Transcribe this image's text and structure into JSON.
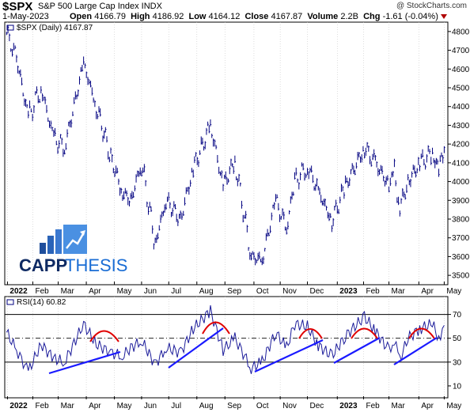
{
  "header": {
    "ticker": "$SPX",
    "name": "S&P 500 Large Cap Index  INDX",
    "watermark": "@ StockCharts.com",
    "date": "1-May-2023",
    "open_label": "Open",
    "open": "4166.79",
    "high_label": "High",
    "high": "4186.92",
    "low_label": "Low",
    "low": "4164.12",
    "close_label": "Close",
    "close": "4167.87",
    "volume_label": "Volume",
    "volume": "2.2B",
    "chg_label": "Chg",
    "chg": "-1.61 (-0.04%)"
  },
  "logo": {
    "text_a": "CAPP",
    "text_b": "THESIS"
  },
  "colors": {
    "price": "#000080",
    "rsi": "#1c1c9a",
    "trend": "#1a1aff",
    "arc": "#e00000",
    "grid": "#c8c8c8",
    "axisline": "#000000"
  },
  "chart_data": [
    {
      "type": "line",
      "title": "$SPX (Daily) 4167.87",
      "x_labels": [
        "2022",
        "Feb",
        "Mar",
        "Apr",
        "May",
        "Jun",
        "Jul",
        "Aug",
        "Sep",
        "Oct",
        "Nov",
        "Dec",
        "2023",
        "Feb",
        "Mar",
        "Apr",
        "May"
      ],
      "ylim": [
        3450,
        4850
      ],
      "y_ticks": [
        3500,
        3600,
        3700,
        3800,
        3900,
        4000,
        4100,
        4200,
        4300,
        4400,
        4500,
        4600,
        4700,
        4800
      ],
      "x": [
        "2022-01-03",
        "2022-01-14",
        "2022-01-27",
        "2022-02-10",
        "2022-02-24",
        "2022-03-08",
        "2022-03-29",
        "2022-04-12",
        "2022-04-28",
        "2022-05-11",
        "2022-05-20",
        "2022-06-01",
        "2022-06-16",
        "2022-06-28",
        "2022-07-14",
        "2022-07-28",
        "2022-08-16",
        "2022-08-30",
        "2022-09-12",
        "2022-09-30",
        "2022-10-12",
        "2022-10-27",
        "2022-11-08",
        "2022-11-17",
        "2022-12-01",
        "2022-12-13",
        "2022-12-28",
        "2023-01-12",
        "2023-02-02",
        "2023-02-14",
        "2023-03-01",
        "2023-03-07",
        "2023-03-13",
        "2023-03-22",
        "2023-04-04",
        "2023-04-18",
        "2023-04-25",
        "2023-05-01"
      ],
      "y": [
        4790,
        4660,
        4340,
        4500,
        4230,
        4180,
        4630,
        4400,
        4130,
        3940,
        3900,
        4100,
        3670,
        3900,
        3800,
        4070,
        4300,
        3980,
        4110,
        3600,
        3580,
        3900,
        3750,
        4000,
        4080,
        3950,
        3790,
        3980,
        4180,
        4100,
        3980,
        4050,
        3860,
        4000,
        4100,
        4150,
        4060,
        4170
      ]
    },
    {
      "type": "line",
      "title": "RSI(14) 60.82",
      "x_labels": [
        "2022",
        "Feb",
        "Mar",
        "Apr",
        "May",
        "Jun",
        "Jul",
        "Aug",
        "Sep",
        "Oct",
        "Nov",
        "Dec",
        "2023",
        "Feb",
        "Mar",
        "Apr",
        "May"
      ],
      "ylim": [
        0,
        85
      ],
      "y_ticks": [
        10,
        30,
        50,
        70
      ],
      "guide_levels": [
        30,
        50,
        70
      ],
      "x": [
        "2022-01-03",
        "2022-01-14",
        "2022-01-27",
        "2022-02-10",
        "2022-02-24",
        "2022-03-08",
        "2022-03-29",
        "2022-04-12",
        "2022-04-28",
        "2022-05-11",
        "2022-05-20",
        "2022-06-01",
        "2022-06-16",
        "2022-06-28",
        "2022-07-14",
        "2022-07-28",
        "2022-08-16",
        "2022-08-30",
        "2022-09-12",
        "2022-09-30",
        "2022-10-12",
        "2022-10-27",
        "2022-11-08",
        "2022-11-17",
        "2022-12-01",
        "2022-12-13",
        "2022-12-28",
        "2023-01-12",
        "2023-02-02",
        "2023-02-14",
        "2023-03-01",
        "2023-03-07",
        "2023-03-13",
        "2023-03-22",
        "2023-04-04",
        "2023-04-18",
        "2023-04-25",
        "2023-05-01"
      ],
      "y": [
        55,
        40,
        22,
        45,
        33,
        30,
        62,
        45,
        38,
        35,
        42,
        48,
        28,
        42,
        38,
        58,
        73,
        40,
        50,
        25,
        30,
        55,
        42,
        62,
        60,
        44,
        35,
        52,
        68,
        56,
        40,
        48,
        32,
        50,
        58,
        62,
        50,
        60.82
      ]
    }
  ]
}
